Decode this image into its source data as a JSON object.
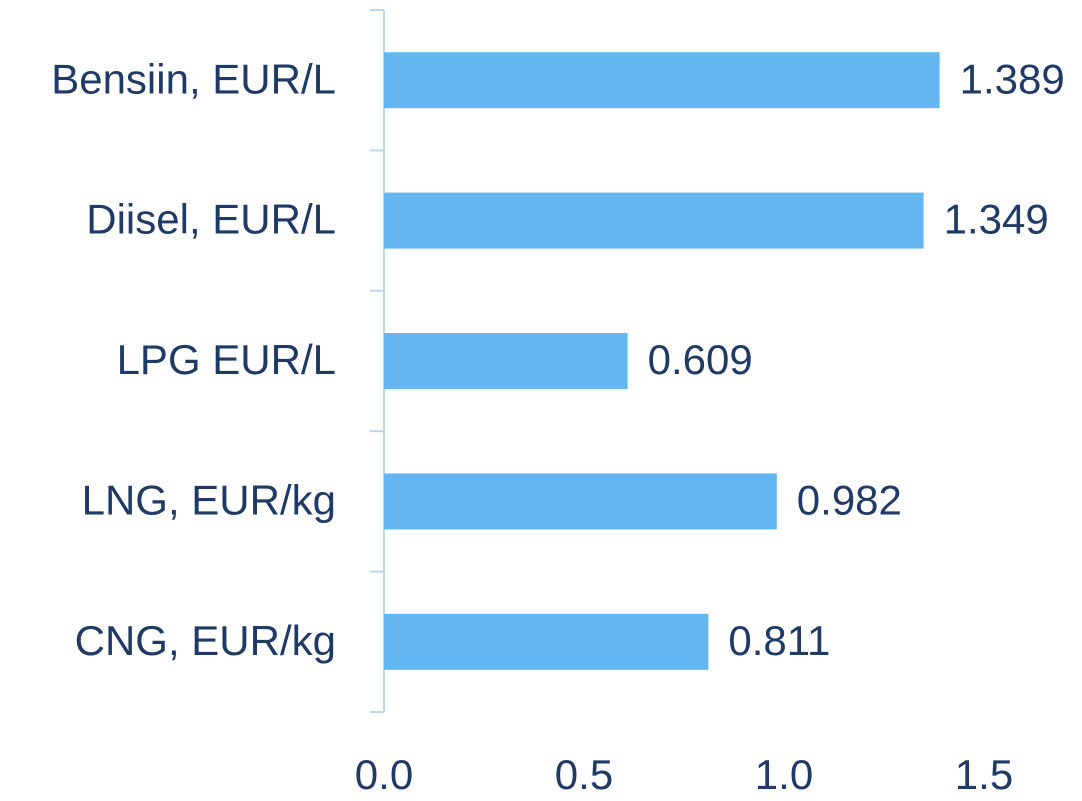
{
  "chart_data": {
    "type": "barh",
    "categories": [
      "Bensiin, EUR/L",
      "Diisel, EUR/L",
      "LPG EUR/L",
      "LNG, EUR/kg",
      "CNG, EUR/kg"
    ],
    "values": [
      1.389,
      1.349,
      0.609,
      0.982,
      0.811
    ],
    "color": "#63b6ef",
    "xlim": [
      0,
      1.5
    ],
    "xticks": [
      {
        "value": 0,
        "label": "0.0"
      },
      0.5,
      {
        "value": 1,
        "label": "1.0"
      },
      1.5
    ]
  }
}
